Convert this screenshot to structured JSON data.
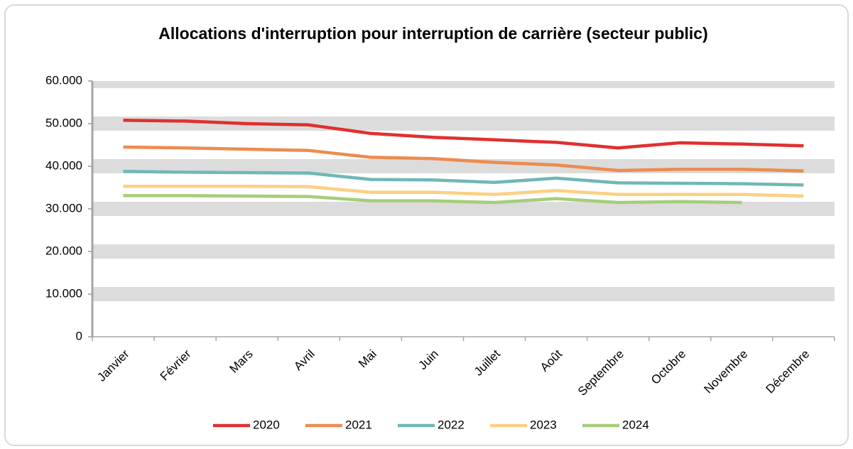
{
  "chart_data": {
    "type": "line",
    "title": "Allocations d'interruption pour interruption de carrière (secteur public)",
    "categories": [
      "Janvier",
      "Février",
      "Mars",
      "Avril",
      "Mai",
      "Juin",
      "Juillet",
      "Août",
      "Septembre",
      "Octobre",
      "Novembre",
      "Décembre"
    ],
    "series": [
      {
        "name": "2020",
        "color": "#e0302f",
        "values": [
          50800,
          50600,
          50000,
          49700,
          47700,
          46800,
          46200,
          45600,
          44300,
          45500,
          45200,
          44800
        ]
      },
      {
        "name": "2021",
        "color": "#ec8c4f",
        "values": [
          44500,
          44300,
          44000,
          43700,
          42100,
          41800,
          40900,
          40300,
          39000,
          39300,
          39300,
          38900
        ]
      },
      {
        "name": "2022",
        "color": "#6fb8b6",
        "values": [
          38800,
          38600,
          38500,
          38400,
          36900,
          36800,
          36200,
          37200,
          36100,
          36000,
          35900,
          35600
        ]
      },
      {
        "name": "2023",
        "color": "#fbd084",
        "values": [
          35300,
          35300,
          35300,
          35200,
          33900,
          33900,
          33400,
          34300,
          33400,
          33400,
          33400,
          33000
        ]
      },
      {
        "name": "2024",
        "color": "#a6cd7a",
        "values": [
          33100,
          33100,
          33000,
          32900,
          31900,
          31900,
          31500,
          32400,
          31500,
          31700,
          31500,
          null
        ]
      }
    ],
    "ylim": [
      0,
      60000
    ],
    "yticks": [
      0,
      {
        "value": 10000,
        "label": "10.000"
      },
      {
        "value": 20000,
        "label": "20.000"
      },
      {
        "value": 30000,
        "label": "30.000"
      },
      {
        "value": 40000,
        "label": "40.000"
      },
      {
        "value": 50000,
        "label": "50.000"
      },
      {
        "value": 60000,
        "label": "60.000"
      }
    ],
    "grid": true,
    "legend": "bottom"
  }
}
